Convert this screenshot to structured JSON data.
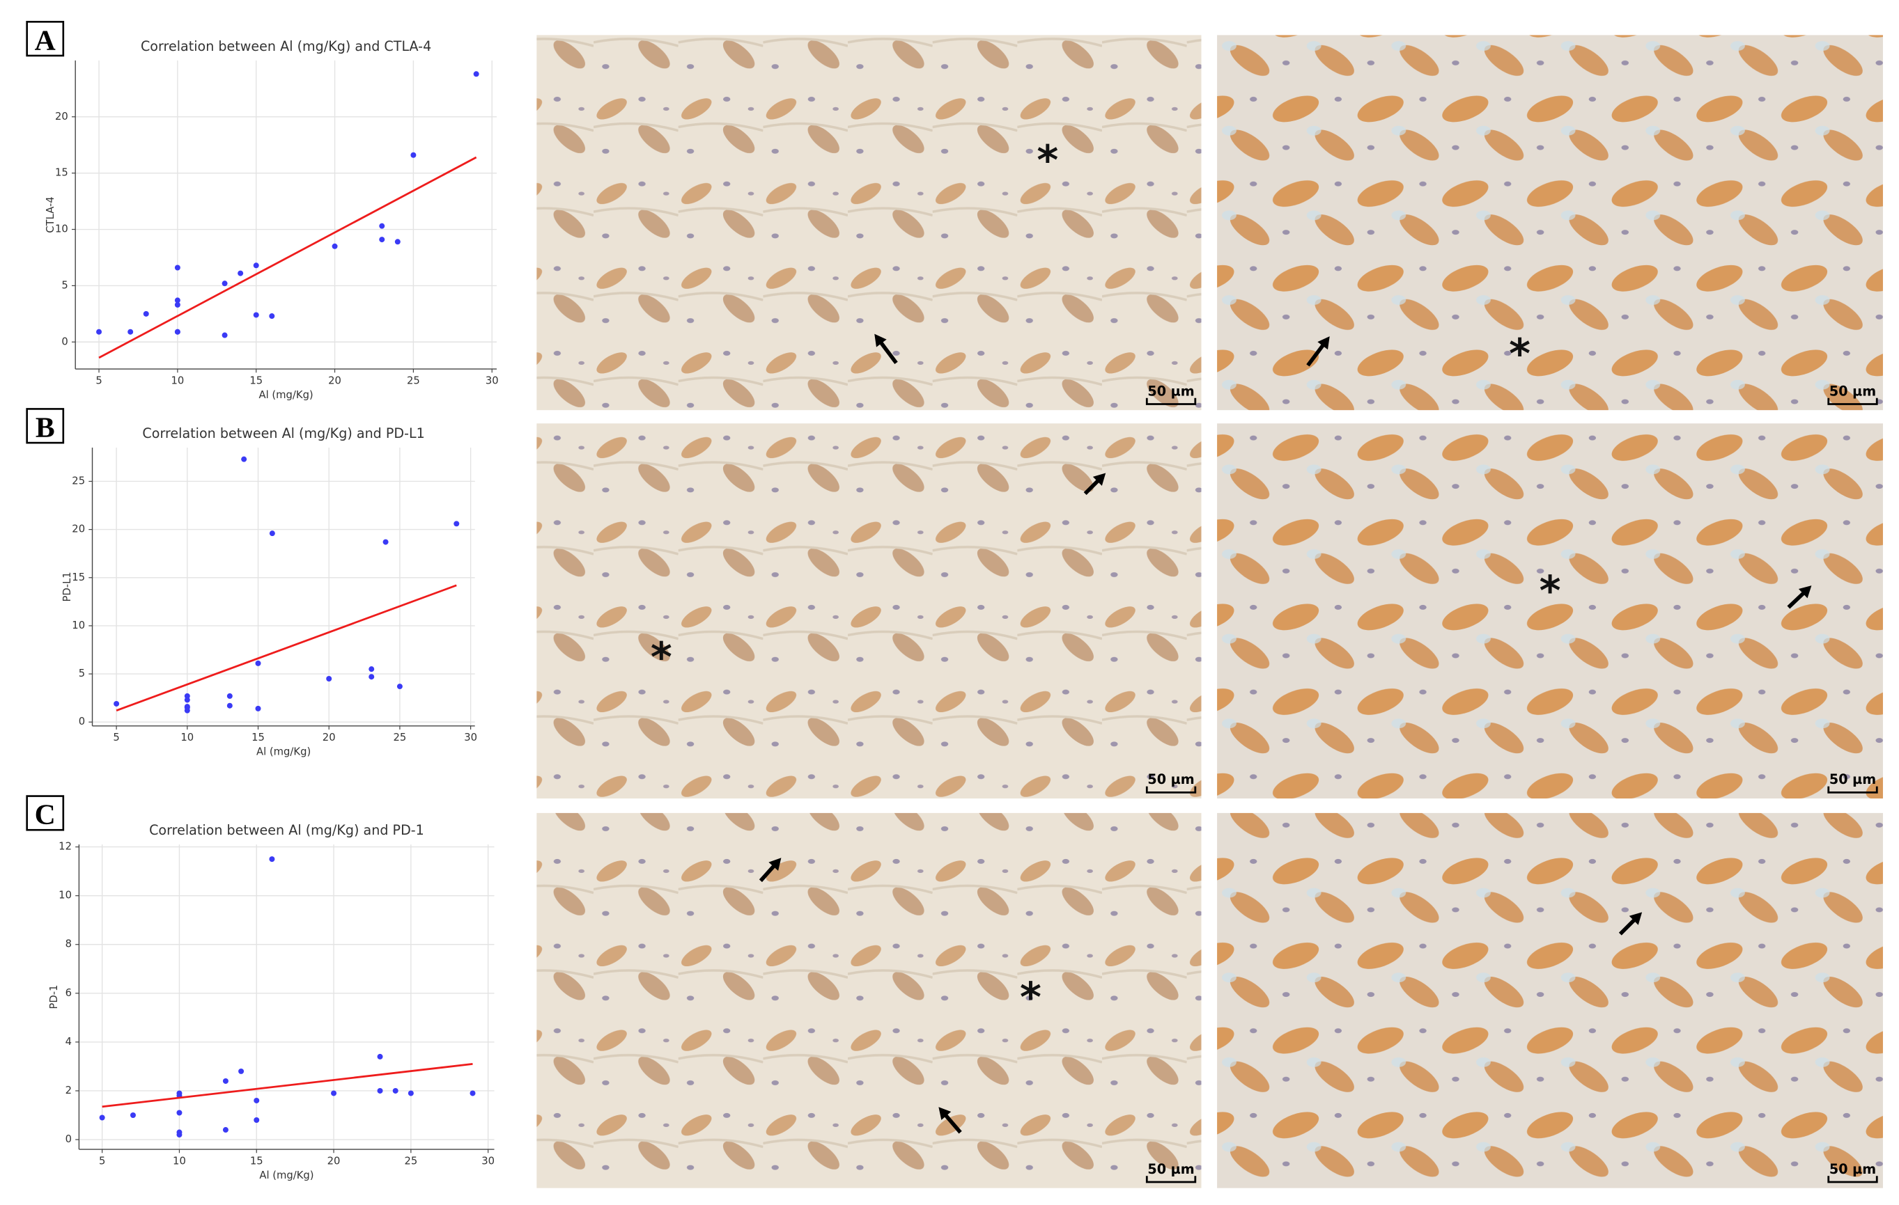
{
  "chart_data": [
    {
      "type": "scatter",
      "title": "Correlation between Al (mg/Kg) and CTLA-4",
      "x_label": "Al (mg/Kg)",
      "y_label": "CTLA-4",
      "xlim": [
        3.5,
        30.3
      ],
      "ylim": [
        -2.4,
        25
      ],
      "xticks": [
        5,
        10,
        15,
        20,
        25,
        30
      ],
      "yticks": [
        0,
        5,
        10,
        15,
        20
      ],
      "grid": true,
      "series": [
        {
          "color": "#3a3af5",
          "x": [
            5,
            7,
            8,
            10,
            10,
            10,
            10,
            10,
            13,
            13,
            14,
            15,
            15,
            16,
            20,
            23,
            23,
            24,
            25,
            29
          ],
          "values": [
            0.9,
            0.9,
            2.5,
            6.6,
            3.7,
            3.3,
            0.9,
            0.9,
            5.2,
            0.6,
            6.1,
            6.8,
            2.4,
            2.3,
            8.5,
            10.3,
            9.1,
            8.9,
            16.6,
            23.8
          ]
        }
      ],
      "fit": {
        "color": "#ee1c1c",
        "x": [
          5,
          29
        ],
        "values": [
          -1.4,
          16.4
        ]
      }
    },
    {
      "type": "scatter",
      "title": "Correlation between Al (mg/Kg) and PD-L1",
      "x_label": "Al (mg/Kg)",
      "y_label": "PD-L1",
      "xlim": [
        3.3,
        30.3
      ],
      "ylim": [
        -0.4,
        28.5
      ],
      "xticks": [
        5,
        10,
        15,
        20,
        25,
        30
      ],
      "yticks": [
        0,
        5,
        10,
        15,
        20,
        25
      ],
      "grid": true,
      "series": [
        {
          "color": "#3a3af5",
          "x": [
            5,
            10,
            10,
            10,
            10,
            10,
            13,
            13,
            14,
            15,
            15,
            16,
            20,
            23,
            23,
            24,
            25,
            29
          ],
          "values": [
            1.9,
            2.7,
            2.3,
            1.6,
            1.2,
            1.5,
            2.7,
            1.7,
            27.3,
            6.1,
            1.4,
            19.6,
            4.5,
            5.5,
            4.7,
            18.7,
            3.7,
            20.6
          ]
        }
      ],
      "fit": {
        "color": "#ee1c1c",
        "x": [
          5,
          29
        ],
        "values": [
          1.2,
          14.2
        ]
      }
    },
    {
      "type": "scatter",
      "title": "Correlation between Al (mg/Kg) and PD-1",
      "x_label": "Al (mg/Kg)",
      "y_label": "PD-1",
      "xlim": [
        3.5,
        30.4
      ],
      "ylim": [
        -0.4,
        12.1
      ],
      "xticks": [
        5,
        10,
        15,
        20,
        25,
        30
      ],
      "yticks": [
        0,
        2,
        4,
        6,
        8,
        10,
        12
      ],
      "grid": true,
      "series": [
        {
          "color": "#3a3af5",
          "x": [
            5,
            7,
            10,
            10,
            10,
            10,
            10,
            13,
            13,
            14,
            15,
            15,
            16,
            20,
            23,
            23,
            24,
            25,
            29
          ],
          "values": [
            0.9,
            1.0,
            1.9,
            1.8,
            1.1,
            0.3,
            0.2,
            2.4,
            0.4,
            2.8,
            1.6,
            0.8,
            11.5,
            1.9,
            3.4,
            2.0,
            2.0,
            1.9,
            1.9
          ]
        }
      ],
      "fit": {
        "color": "#ee1c1c",
        "x": [
          5,
          29
        ],
        "values": [
          1.35,
          3.1
        ]
      }
    }
  ],
  "panels": [
    {
      "label": "A",
      "micrographs": [
        {
          "scale_bar": "50 µm",
          "marker": "*"
        },
        {
          "scale_bar": "50 µm",
          "marker": "*"
        }
      ]
    },
    {
      "label": "B",
      "micrographs": [
        {
          "scale_bar": "50 µm",
          "marker": "*"
        },
        {
          "scale_bar": "50 µm",
          "marker": "*"
        }
      ]
    },
    {
      "label": "C",
      "micrographs": [
        {
          "scale_bar": "50 µm",
          "marker": "*"
        },
        {
          "scale_bar": "50 µm"
        }
      ]
    }
  ]
}
